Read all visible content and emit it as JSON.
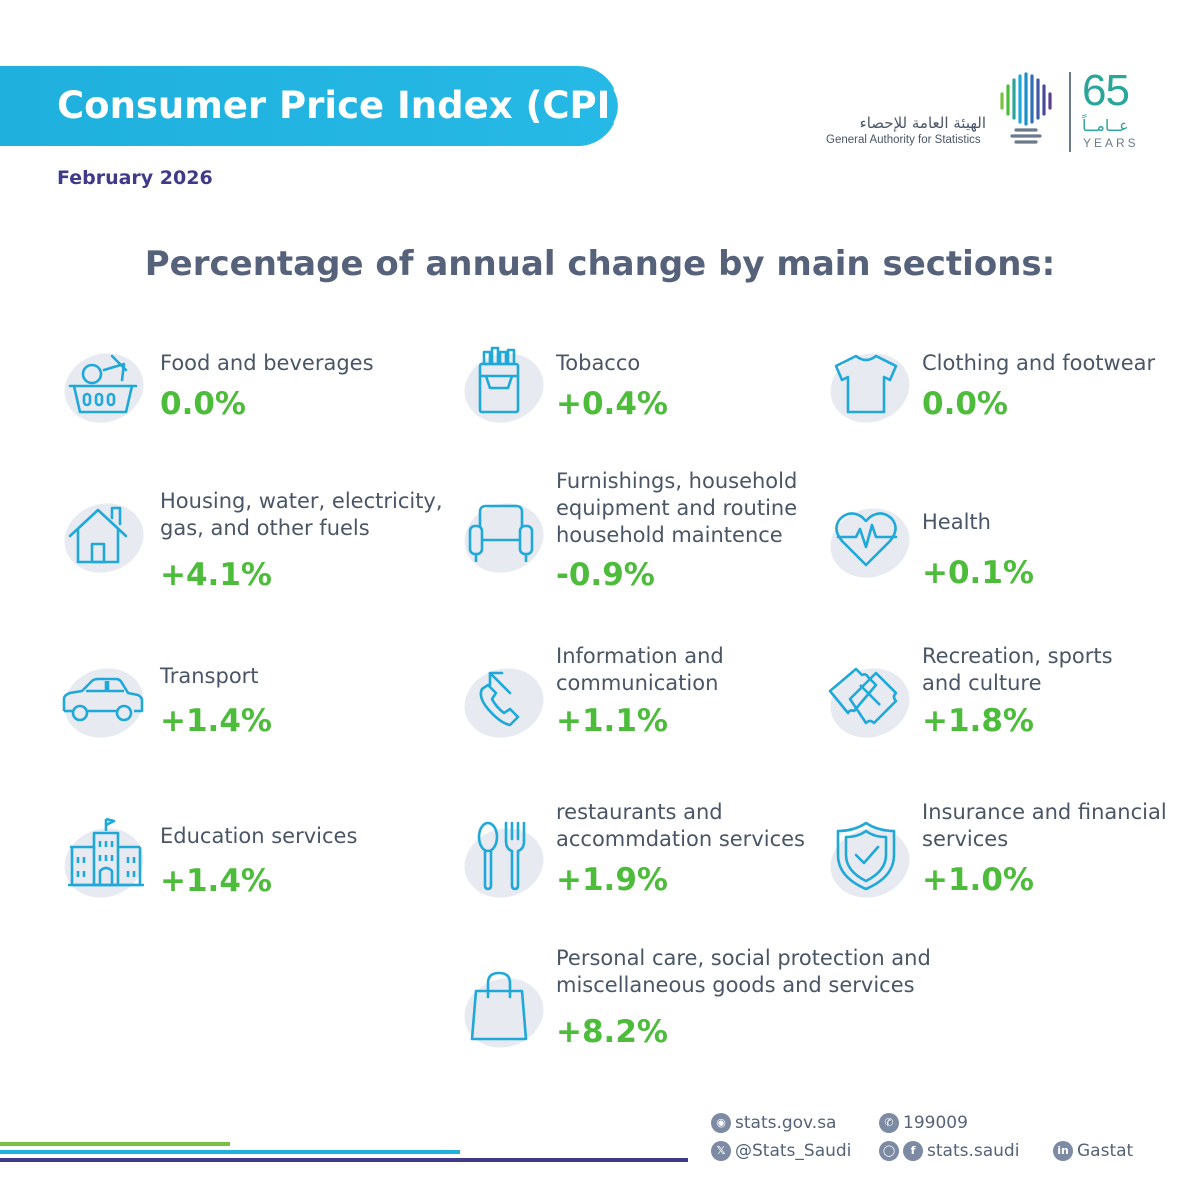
{
  "header": {
    "title": "Consumer Price Index (CPI)",
    "date": "February 2026"
  },
  "logo": {
    "arabic_name": "الهيئة العامة للإحصاء",
    "english_name": "General Authority for Statistics",
    "anniversary_number": "65",
    "anniversary_arabic": "عــامــاً",
    "anniversary_years": "YEARS"
  },
  "heading": "Percentage of annual change by main sections:",
  "sections": [
    {
      "icon": "basket-icon",
      "name_lines": [
        "Food and beverages"
      ],
      "value": "0.0%"
    },
    {
      "icon": "cigarette-pack-icon",
      "name_lines": [
        "Tobacco"
      ],
      "value": "+0.4%"
    },
    {
      "icon": "tshirt-icon",
      "name_lines": [
        "Clothing and footwear"
      ],
      "value": "0.0%"
    },
    {
      "icon": "house-icon",
      "name_lines": [
        "Housing, water, electricity,",
        "gas, and other fuels"
      ],
      "value": "+4.1%"
    },
    {
      "icon": "armchair-icon",
      "name_lines": [
        "Furnishings, household",
        "equipment and routine",
        "household maintence"
      ],
      "value": "-0.9%"
    },
    {
      "icon": "heart-pulse-icon",
      "name_lines": [
        "Health"
      ],
      "value": "+0.1%"
    },
    {
      "icon": "car-icon",
      "name_lines": [
        "Transport"
      ],
      "value": "+1.4%"
    },
    {
      "icon": "phone-call-icon",
      "name_lines": [
        "Information and",
        "communication"
      ],
      "value": "+1.1%"
    },
    {
      "icon": "tickets-icon",
      "name_lines": [
        "Recreation, sports",
        "and culture"
      ],
      "value": "+1.8%"
    },
    {
      "icon": "school-building-icon",
      "name_lines": [
        "Education services"
      ],
      "value": "+1.4%"
    },
    {
      "icon": "spoon-fork-icon",
      "name_lines": [
        "restaurants and",
        "accommdation services"
      ],
      "value": "+1.9%"
    },
    {
      "icon": "shield-check-icon",
      "name_lines": [
        "Insurance and financial",
        "services"
      ],
      "value": "+1.0%"
    },
    {
      "icon": "shopping-bag-icon",
      "name_lines": [
        "Personal care, social protection and",
        "miscellaneous goods and services"
      ],
      "value": "+8.2%"
    }
  ],
  "footer": {
    "website": "stats.gov.sa",
    "phone": "199009",
    "twitter": "@Stats_Saudi",
    "social": "stats.saudi",
    "linkedin": "Gastat"
  },
  "colors": {
    "banner": "#1fb0dd",
    "value_green": "#4cbc3a",
    "icon_blue": "#1fa8d8",
    "date_purple": "#3f3a8a"
  }
}
